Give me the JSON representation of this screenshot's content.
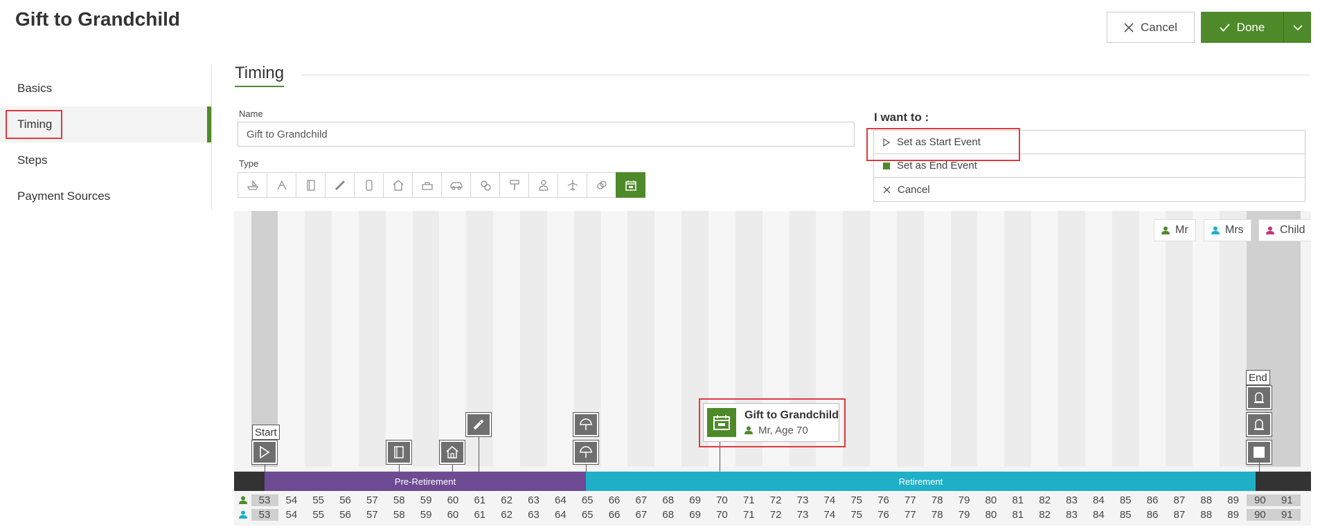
{
  "title": "Gift to Grandchild",
  "actions": {
    "cancel": "Cancel",
    "done": "Done"
  },
  "nav": [
    "Basics",
    "Timing",
    "Steps",
    "Payment Sources"
  ],
  "section": "Timing",
  "name_label": "Name",
  "name_value": "Gift to Grandchild",
  "type_label": "Type",
  "type_icons": [
    "boat-icon",
    "wedding-icon",
    "book-icon",
    "remote-icon",
    "car-seat-icon",
    "house-icon",
    "travel-icon",
    "vehicle-icon",
    "money-icon",
    "paint-roller-icon",
    "person-icon",
    "plane-icon",
    "rings-icon",
    "calendar-icon"
  ],
  "want": {
    "label": "I want to :",
    "items": [
      "Set as Start Event",
      "Set as End Event",
      "Cancel"
    ]
  },
  "legend": [
    "Mr",
    "Mrs",
    "Child"
  ],
  "colors": {
    "green": "#4e8a2a",
    "mr": "#4e8a2a",
    "mrs": "#1fb0c8",
    "child": "#c2357e",
    "pre_retirement": "#6e4a93",
    "retirement": "#1fb0c8",
    "highlight": "#e0393e"
  },
  "timeline": {
    "start_label": "Start",
    "end_label": "End",
    "event_title": "Gift to Grandchild",
    "event_sub": "Mr, Age 70",
    "phases": [
      "Pre-Retirement",
      "Retirement"
    ],
    "ages": [
      53,
      54,
      55,
      56,
      57,
      58,
      59,
      60,
      61,
      62,
      63,
      64,
      65,
      66,
      67,
      68,
      69,
      70,
      71,
      72,
      73,
      74,
      75,
      76,
      77,
      78,
      79,
      80,
      81,
      82,
      83,
      84,
      85,
      86,
      87,
      88,
      89,
      90,
      91
    ]
  }
}
